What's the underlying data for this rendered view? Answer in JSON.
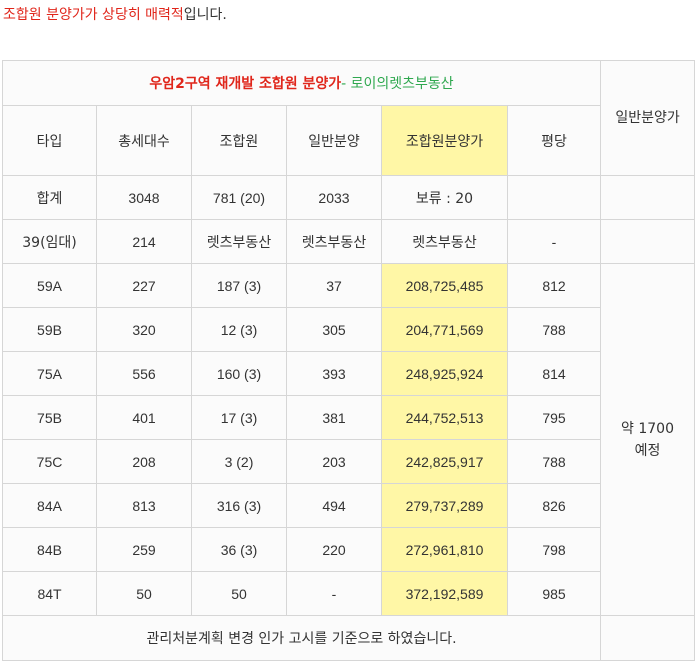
{
  "intro": {
    "highlight": "조합원 분양가가 상당히 매력적",
    "rest": "입니다."
  },
  "table": {
    "title_main": "우암2구역 재개발 조합원 분양가",
    "title_suffix": "- 로이의렛츠부동산",
    "headers": [
      "타입",
      "총세대수",
      "조합원",
      "일반분양",
      "조합원분양가",
      "평당",
      "일반분양가"
    ],
    "rows": [
      [
        "합계",
        "3048",
        "781 (20)",
        "2033",
        "보류 : 20",
        ""
      ],
      [
        "39(임대)",
        "214",
        "렛츠부동산",
        "렛츠부동산",
        "렛츠부동산",
        "-"
      ],
      [
        "59A",
        "227",
        "187 (3)",
        "37",
        "208,725,485",
        "812"
      ],
      [
        "59B",
        "320",
        "12 (3)",
        "305",
        "204,771,569",
        "788"
      ],
      [
        "75A",
        "556",
        "160 (3)",
        "393",
        "248,925,924",
        "814"
      ],
      [
        "75B",
        "401",
        "17 (3)",
        "381",
        "244,752,513",
        "795"
      ],
      [
        "75C",
        "208",
        "3 (2)",
        "203",
        "242,825,917",
        "788"
      ],
      [
        "84A",
        "813",
        "316 (3)",
        "494",
        "279,737,289",
        "826"
      ],
      [
        "84B",
        "259",
        "36 (3)",
        "220",
        "272,961,810",
        "798"
      ],
      [
        "84T",
        "50",
        "50",
        "-",
        "372,192,589",
        "985"
      ]
    ],
    "general_price_line1": "약 1700",
    "general_price_line2": "예정",
    "footer": "관리처분계획 변경 인가 고시를 기준으로 하였습니다.",
    "colors": {
      "highlight_col": "#fff7a6",
      "blue_text": "#3a8ee6",
      "red_text": "#e0261b",
      "green_text": "#2fa84f"
    }
  }
}
